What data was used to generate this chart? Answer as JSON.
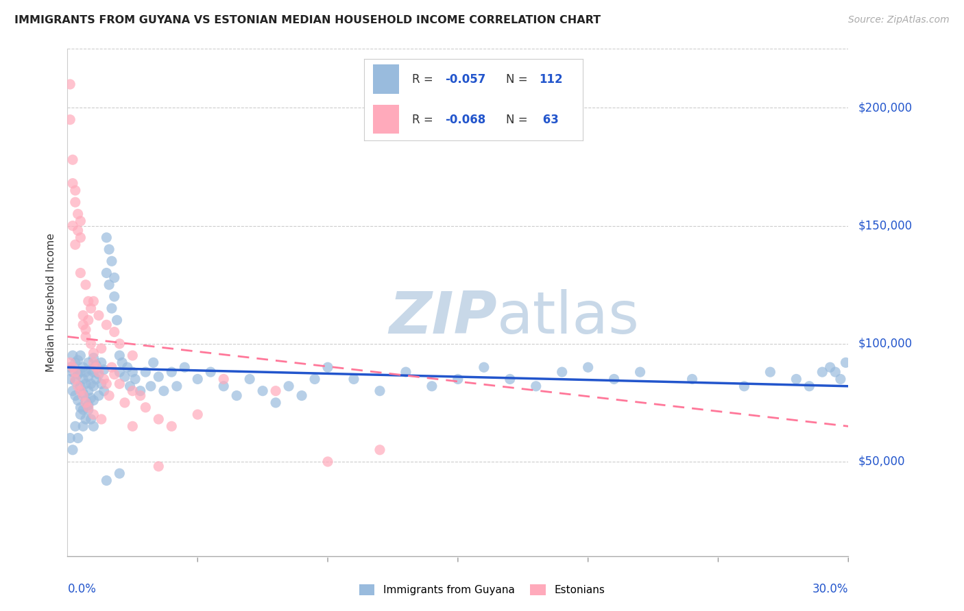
{
  "title": "IMMIGRANTS FROM GUYANA VS ESTONIAN MEDIAN HOUSEHOLD INCOME CORRELATION CHART",
  "source": "Source: ZipAtlas.com",
  "ylabel": "Median Household Income",
  "legend_label1": "Immigrants from Guyana",
  "legend_label2": "Estonians",
  "legend_R1": "R = -0.057",
  "legend_N1": "N = 112",
  "legend_R2": "R = -0.068",
  "legend_N2": "N =  63",
  "color_blue": "#99BBDD",
  "color_pink": "#FFAABB",
  "color_blue_dark": "#2255CC",
  "color_pink_dark": "#FF7799",
  "watermark_color": "#C8D8E8",
  "ytick_labels": [
    "$50,000",
    "$100,000",
    "$150,000",
    "$200,000"
  ],
  "ytick_values": [
    50000,
    100000,
    150000,
    200000
  ],
  "xmin": 0.0,
  "xmax": 0.3,
  "ymin": 10000,
  "ymax": 225000,
  "blue_trendline_x": [
    0.0,
    0.3
  ],
  "blue_trendline_y": [
    90000,
    82000
  ],
  "pink_trendline_x": [
    0.0,
    0.3
  ],
  "pink_trendline_y": [
    103000,
    65000
  ],
  "blue_scatter_x": [
    0.001,
    0.001,
    0.002,
    0.002,
    0.002,
    0.003,
    0.003,
    0.003,
    0.004,
    0.004,
    0.004,
    0.005,
    0.005,
    0.005,
    0.005,
    0.006,
    0.006,
    0.006,
    0.006,
    0.007,
    0.007,
    0.007,
    0.008,
    0.008,
    0.008,
    0.008,
    0.009,
    0.009,
    0.009,
    0.01,
    0.01,
    0.01,
    0.01,
    0.011,
    0.011,
    0.012,
    0.012,
    0.013,
    0.013,
    0.014,
    0.014,
    0.015,
    0.015,
    0.016,
    0.016,
    0.017,
    0.017,
    0.018,
    0.018,
    0.019,
    0.02,
    0.02,
    0.021,
    0.022,
    0.023,
    0.024,
    0.025,
    0.026,
    0.028,
    0.03,
    0.032,
    0.033,
    0.035,
    0.037,
    0.04,
    0.042,
    0.045,
    0.05,
    0.055,
    0.06,
    0.065,
    0.07,
    0.075,
    0.08,
    0.085,
    0.09,
    0.095,
    0.1,
    0.11,
    0.12,
    0.13,
    0.14,
    0.15,
    0.16,
    0.17,
    0.18,
    0.19,
    0.2,
    0.21,
    0.22,
    0.24,
    0.26,
    0.27,
    0.28,
    0.285,
    0.29,
    0.293,
    0.295,
    0.297,
    0.299,
    0.001,
    0.002,
    0.003,
    0.004,
    0.005,
    0.006,
    0.007,
    0.008,
    0.009,
    0.01,
    0.015,
    0.02
  ],
  "blue_scatter_y": [
    90000,
    85000,
    95000,
    88000,
    80000,
    92000,
    78000,
    84000,
    87000,
    93000,
    76000,
    88000,
    82000,
    95000,
    73000,
    90000,
    85000,
    79000,
    72000,
    88000,
    83000,
    76000,
    92000,
    86000,
    80000,
    74000,
    89000,
    83000,
    77000,
    94000,
    88000,
    82000,
    76000,
    91000,
    85000,
    87000,
    78000,
    92000,
    83000,
    89000,
    80000,
    145000,
    130000,
    140000,
    125000,
    135000,
    115000,
    128000,
    120000,
    110000,
    95000,
    88000,
    92000,
    86000,
    90000,
    82000,
    88000,
    85000,
    80000,
    88000,
    82000,
    92000,
    86000,
    80000,
    88000,
    82000,
    90000,
    85000,
    88000,
    82000,
    78000,
    85000,
    80000,
    75000,
    82000,
    78000,
    85000,
    90000,
    85000,
    80000,
    88000,
    82000,
    85000,
    90000,
    85000,
    82000,
    88000,
    90000,
    85000,
    88000,
    85000,
    82000,
    88000,
    85000,
    82000,
    88000,
    90000,
    88000,
    85000,
    92000,
    60000,
    55000,
    65000,
    60000,
    70000,
    65000,
    68000,
    72000,
    68000,
    65000,
    42000,
    45000
  ],
  "pink_scatter_x": [
    0.001,
    0.001,
    0.002,
    0.002,
    0.003,
    0.003,
    0.004,
    0.004,
    0.005,
    0.005,
    0.006,
    0.006,
    0.007,
    0.007,
    0.008,
    0.008,
    0.009,
    0.009,
    0.01,
    0.01,
    0.011,
    0.012,
    0.013,
    0.014,
    0.015,
    0.016,
    0.017,
    0.018,
    0.02,
    0.022,
    0.025,
    0.028,
    0.03,
    0.035,
    0.04,
    0.05,
    0.06,
    0.08,
    0.1,
    0.12,
    0.002,
    0.003,
    0.005,
    0.007,
    0.01,
    0.012,
    0.015,
    0.018,
    0.02,
    0.025,
    0.001,
    0.002,
    0.003,
    0.003,
    0.004,
    0.005,
    0.006,
    0.007,
    0.008,
    0.01,
    0.013,
    0.025,
    0.035
  ],
  "pink_scatter_y": [
    210000,
    195000,
    178000,
    168000,
    160000,
    165000,
    155000,
    148000,
    152000,
    145000,
    112000,
    108000,
    106000,
    103000,
    118000,
    110000,
    115000,
    100000,
    96000,
    92000,
    90000,
    88000,
    98000,
    85000,
    83000,
    78000,
    90000,
    87000,
    83000,
    75000,
    80000,
    78000,
    73000,
    68000,
    65000,
    70000,
    85000,
    80000,
    50000,
    55000,
    150000,
    142000,
    130000,
    125000,
    118000,
    112000,
    108000,
    105000,
    100000,
    95000,
    92000,
    90000,
    85000,
    88000,
    82000,
    80000,
    78000,
    75000,
    73000,
    70000,
    68000,
    65000,
    48000
  ]
}
